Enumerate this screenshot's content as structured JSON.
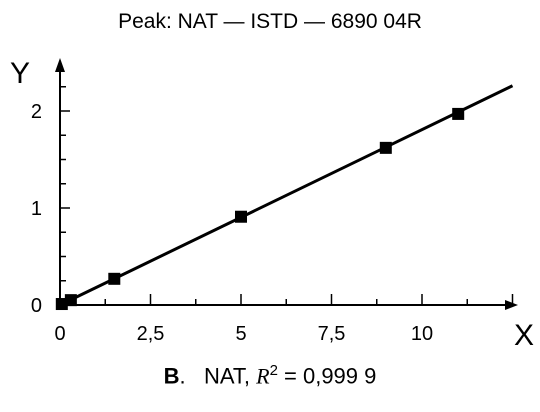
{
  "chart_data": {
    "type": "scatter",
    "title": "Peak: NAT — ISTD — 6890 04R",
    "xlabel": "X",
    "ylabel": "Y",
    "xlim": [
      0,
      12.5
    ],
    "ylim": [
      0,
      2.35
    ],
    "x_ticks": [
      "0",
      "2,5",
      "5",
      "7,5",
      "10"
    ],
    "y_ticks": [
      "0",
      "1",
      "2"
    ],
    "grid": false,
    "series": [
      {
        "x": [
          0.05,
          0.3,
          1.5,
          5,
          9,
          11
        ],
        "y": [
          0.01,
          0.05,
          0.27,
          0.91,
          1.62,
          1.97
        ]
      }
    ],
    "fit_line": {
      "x": [
        0,
        12.5
      ],
      "y": [
        0.0,
        2.26
      ]
    },
    "caption": {
      "panel": "B",
      "text": "NAT, ",
      "r2_symbol": "R",
      "r2_exp": "2",
      "r2_value": " = 0,999 9"
    }
  }
}
